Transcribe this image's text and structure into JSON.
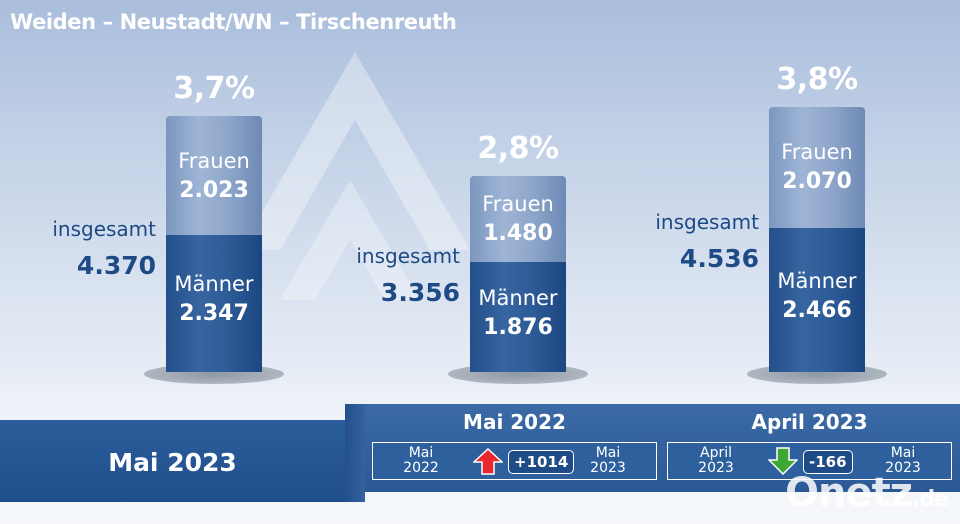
{
  "chart_data": {
    "type": "bar",
    "title": "Weiden – Neustadt/WN – Tirschenreuth",
    "categories": [
      "Mai 2023",
      "Mai 2022",
      "April 2023"
    ],
    "series": [
      {
        "name": "Frauen",
        "values": [
          2023,
          1480,
          2070
        ]
      },
      {
        "name": "Männer",
        "values": [
          2347,
          1876,
          2466
        ]
      }
    ],
    "segment_labels": {
      "frauen": "Frauen",
      "maenner": "Männer"
    },
    "total_label": "insgesamt",
    "totals": [
      "4.370",
      "3.356",
      "4.536"
    ],
    "rates": [
      "3,7%",
      "2,8%",
      "3,8%"
    ],
    "frauen_display": [
      "2.023",
      "1.480",
      "2.070"
    ],
    "maenner_display": [
      "2.347",
      "1.876",
      "2.466"
    ],
    "current_period_label": "Mai 2023",
    "comparisons": [
      {
        "title": "Mai 2022",
        "from": [
          "Mai",
          "2022"
        ],
        "to": [
          "Mai",
          "2023"
        ],
        "delta": "+1014",
        "direction": "up",
        "arrow_color": "#e8282e"
      },
      {
        "title": "April 2023",
        "from": [
          "April",
          "2023"
        ],
        "to": [
          "Mai",
          "2023"
        ],
        "delta": "-166",
        "direction": "down",
        "arrow_color": "#3ea635"
      }
    ]
  },
  "watermark": {
    "main": "Onetz",
    "suffix": ".de"
  },
  "colors": {
    "dark_blue": "#1e4a85",
    "light_blue": "#8ea6ca"
  }
}
